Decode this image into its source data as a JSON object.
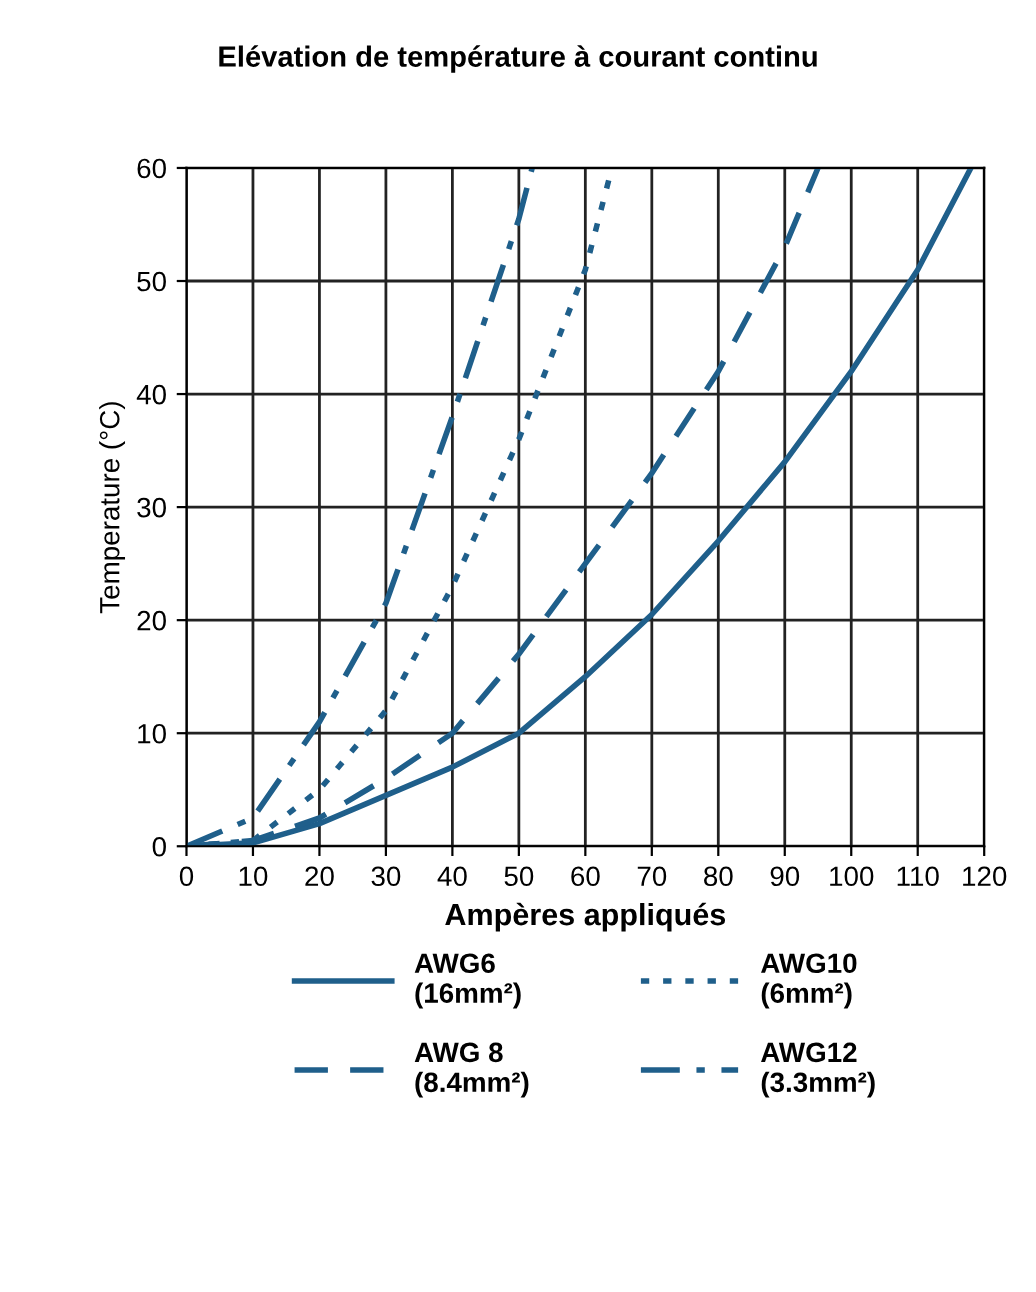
{
  "chart_data": {
    "type": "line",
    "title": "Elévation de température à courant continu",
    "xlabel": "Ampères appliqués",
    "ylabel": "Temperature (°C)",
    "xlim": [
      0,
      120
    ],
    "xticks": [
      0,
      10,
      20,
      30,
      40,
      50,
      60,
      70,
      80,
      90,
      100,
      110,
      120
    ],
    "ylim": [
      0,
      60
    ],
    "yticks": [
      0,
      10,
      20,
      30,
      40,
      50,
      60
    ],
    "grid": true,
    "legend": "bottom",
    "marker": "none",
    "series": [
      {
        "name": "AWG6\n(16mm²)",
        "color": "#1f5f8b",
        "line_style": "solid",
        "x": [
          0,
          10,
          20,
          30,
          40,
          50,
          60,
          70,
          80,
          90,
          100,
          110,
          118
        ],
        "values": [
          0,
          0.3,
          2,
          4.5,
          7,
          10,
          15,
          20.5,
          27,
          34,
          42,
          51,
          60
        ]
      },
      {
        "name": "AWG 8\n(8.4mm²)",
        "color": "#1f5f8b",
        "line_style": "dashed",
        "x": [
          0,
          10,
          20,
          30,
          40,
          50,
          60,
          70,
          80,
          90,
          95
        ],
        "values": [
          0,
          0.5,
          2.5,
          6,
          10,
          17,
          25,
          33,
          42,
          53,
          60
        ]
      },
      {
        "name": "AWG10\n(6mm²)",
        "color": "#1f5f8b",
        "line_style": "dotted",
        "x": [
          0,
          10,
          20,
          30,
          40,
          50,
          60,
          64
        ],
        "values": [
          0,
          0.5,
          5,
          12,
          23,
          36,
          51,
          60
        ]
      },
      {
        "name": "AWG12\n(3.3mm²)",
        "color": "#1f5f8b",
        "line_style": "dashdot",
        "x": [
          0,
          10,
          20,
          30,
          40,
          50,
          52
        ],
        "values": [
          0,
          2.5,
          11,
          21.5,
          38,
          55.5,
          60
        ]
      }
    ]
  }
}
